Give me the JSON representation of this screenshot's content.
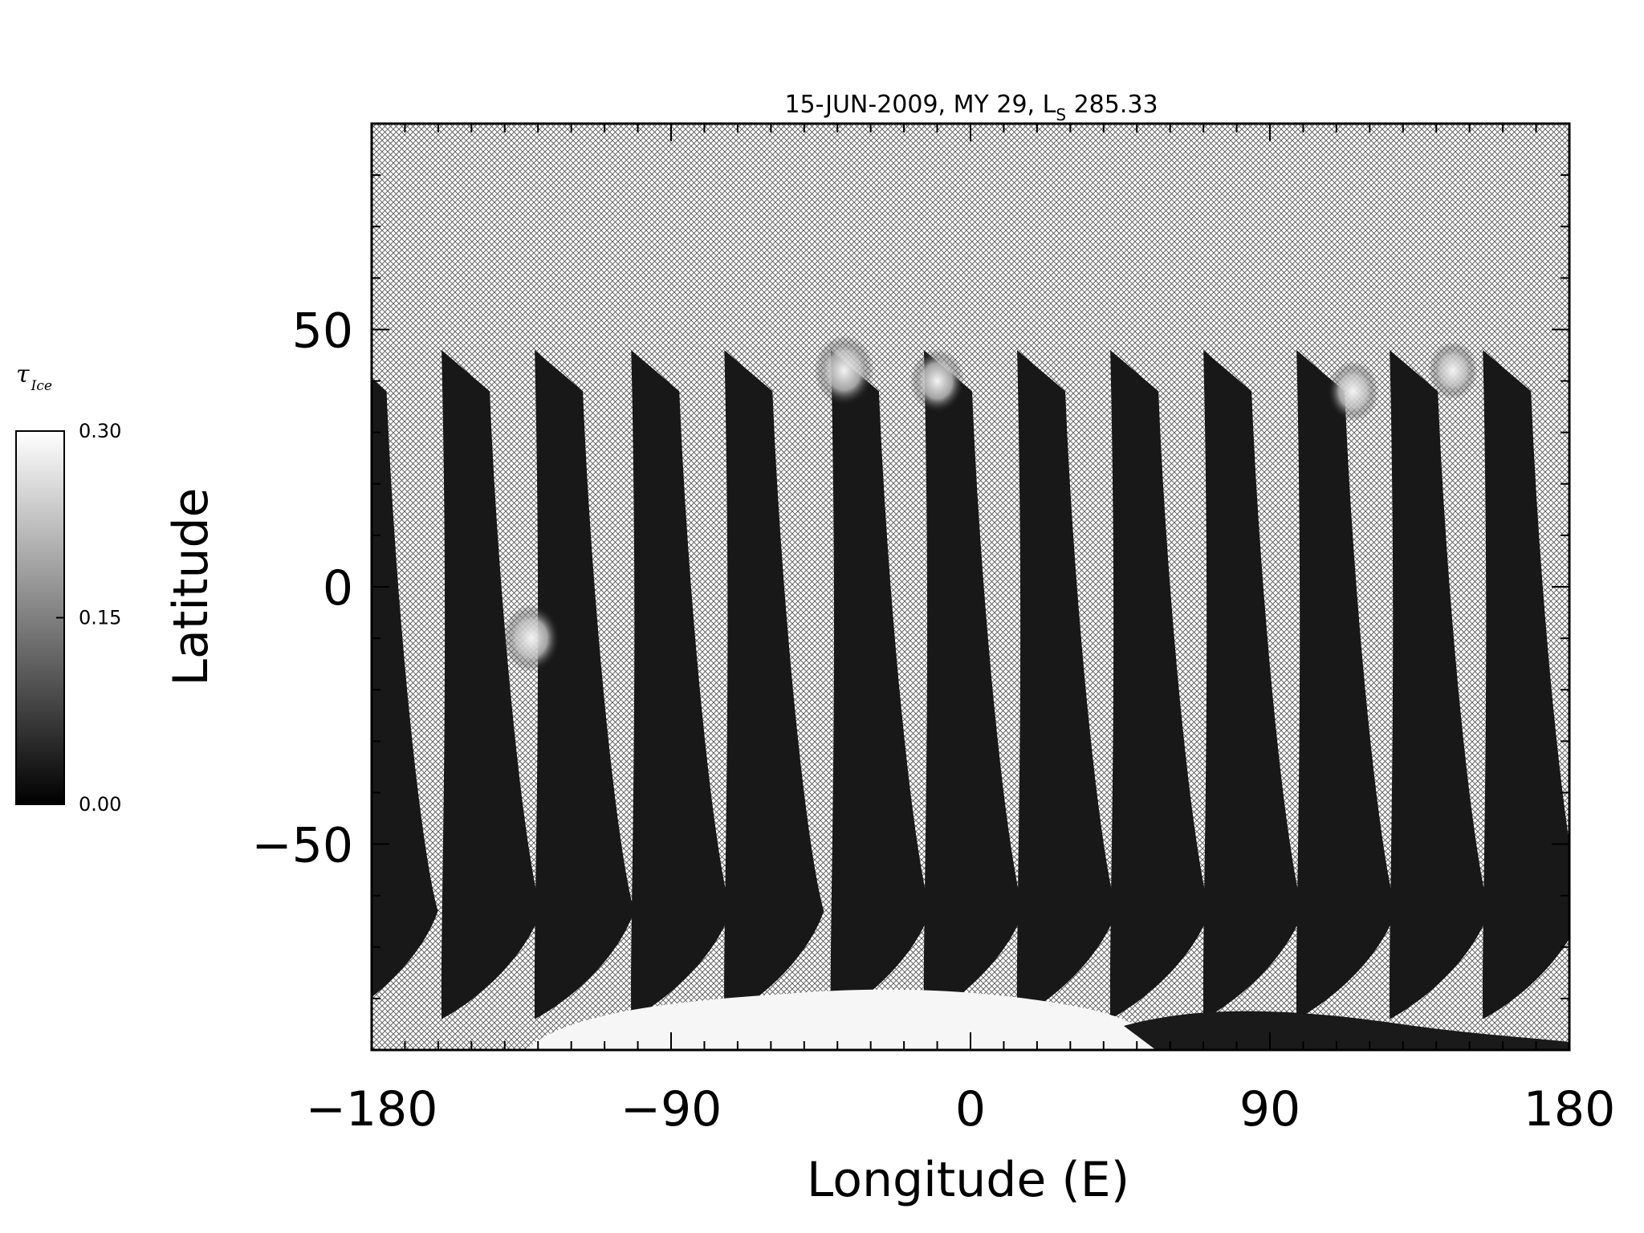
{
  "chart_data": {
    "type": "heatmap",
    "title_prefix": "15-JUN-2009, MY 29,  L",
    "title_sub": "S",
    "title_suffix": " 285.33",
    "xlabel": "Longitude (E)",
    "ylabel": "Latitude",
    "xlim": [
      -180,
      180
    ],
    "ylim": [
      -90,
      90
    ],
    "xticks": [
      -180,
      -90,
      0,
      90,
      180
    ],
    "xtick_labels": [
      "−180",
      "−90",
      "0",
      "90",
      "180"
    ],
    "yticks": [
      -50,
      0,
      50
    ],
    "ytick_labels": [
      "−50",
      "0",
      "50"
    ],
    "colorbar": {
      "label": "τ",
      "label_sub": "Ice",
      "range": [
        0.0,
        0.3
      ],
      "ticks": [
        0.0,
        0.15,
        0.3
      ],
      "tick_labels": [
        "0.00",
        "0.15",
        "0.30"
      ],
      "colormap": "grayscale"
    },
    "no_data_pattern": "crosshatch",
    "swath_center_longitudes_at_equator": [
      -176,
      -145,
      -117,
      -88,
      -60,
      -28,
      0,
      28,
      56,
      84,
      112,
      140,
      168
    ],
    "bright_regions": [
      {
        "lon": -132,
        "lat": -10,
        "value": 0.28
      },
      {
        "lon": -38,
        "lat": 42,
        "value": 0.3
      },
      {
        "lon": -10,
        "lat": 40,
        "value": 0.25
      },
      {
        "lon": 115,
        "lat": 38,
        "value": 0.22
      },
      {
        "lon": 145,
        "lat": 42,
        "value": 0.2
      }
    ],
    "south_polar_cap": {
      "lon_range": [
        -140,
        60
      ],
      "lat_top": -78,
      "value": 0.3
    }
  }
}
